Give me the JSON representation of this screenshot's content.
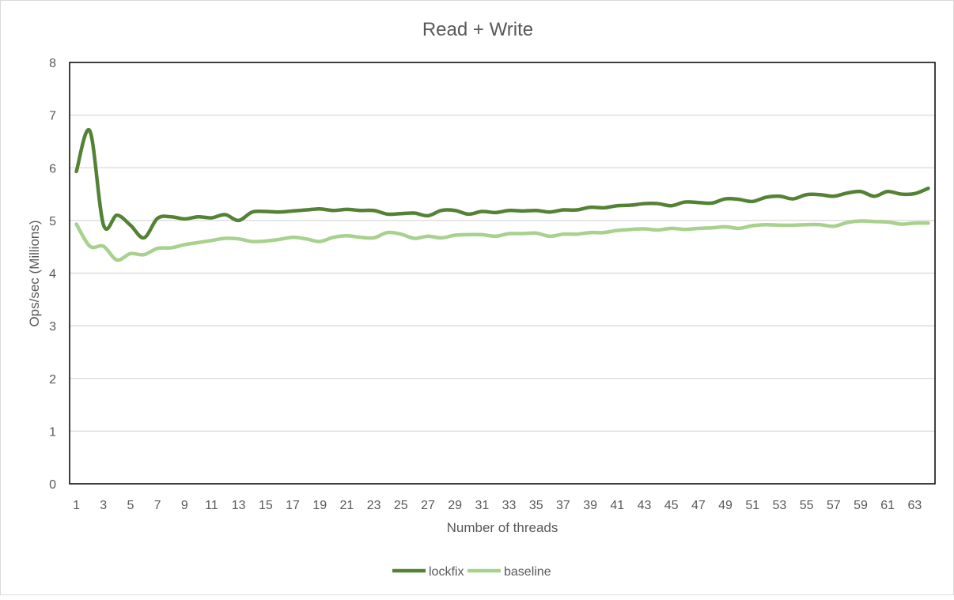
{
  "chart_data": {
    "type": "line",
    "title": "Read + Write",
    "xlabel": "Number of threads",
    "ylabel": "Ops/sec (Millions)",
    "ylim": [
      0,
      8
    ],
    "yticks": [
      "0",
      "1",
      "2",
      "3",
      "4",
      "5",
      "6",
      "7",
      "8"
    ],
    "x": [
      1,
      2,
      3,
      4,
      5,
      6,
      7,
      8,
      9,
      10,
      11,
      12,
      13,
      14,
      15,
      16,
      17,
      18,
      19,
      20,
      21,
      22,
      23,
      24,
      25,
      26,
      27,
      28,
      29,
      30,
      31,
      32,
      33,
      34,
      35,
      36,
      37,
      38,
      39,
      40,
      41,
      42,
      43,
      44,
      45,
      46,
      47,
      48,
      49,
      50,
      51,
      52,
      53,
      54,
      55,
      56,
      57,
      58,
      59,
      60,
      61,
      62,
      63,
      64
    ],
    "xtick_labels": [
      "1",
      "3",
      "5",
      "7",
      "9",
      "11",
      "13",
      "15",
      "17",
      "19",
      "21",
      "23",
      "25",
      "27",
      "29",
      "31",
      "33",
      "35",
      "37",
      "39",
      "41",
      "43",
      "45",
      "47",
      "49",
      "51",
      "53",
      "55",
      "57",
      "59",
      "61",
      "63"
    ],
    "grid": true,
    "legend_position": "bottom",
    "series": [
      {
        "name": "lockfix",
        "color": "#548235",
        "values": [
          5.93,
          6.7,
          4.92,
          5.1,
          4.91,
          4.67,
          5.04,
          5.07,
          5.03,
          5.07,
          5.05,
          5.11,
          5.0,
          5.16,
          5.17,
          5.16,
          5.18,
          5.2,
          5.22,
          5.19,
          5.21,
          5.19,
          5.19,
          5.12,
          5.13,
          5.14,
          5.09,
          5.19,
          5.19,
          5.12,
          5.17,
          5.15,
          5.19,
          5.18,
          5.19,
          5.16,
          5.2,
          5.2,
          5.25,
          5.24,
          5.28,
          5.29,
          5.32,
          5.32,
          5.28,
          5.35,
          5.34,
          5.33,
          5.41,
          5.4,
          5.36,
          5.44,
          5.46,
          5.41,
          5.49,
          5.49,
          5.46,
          5.52,
          5.55,
          5.46,
          5.55,
          5.5,
          5.51,
          5.61
        ]
      },
      {
        "name": "baseline",
        "color": "#a9d18e",
        "values": [
          4.93,
          4.51,
          4.51,
          4.25,
          4.37,
          4.35,
          4.47,
          4.48,
          4.54,
          4.58,
          4.62,
          4.66,
          4.65,
          4.6,
          4.61,
          4.64,
          4.68,
          4.65,
          4.6,
          4.68,
          4.71,
          4.68,
          4.67,
          4.77,
          4.74,
          4.66,
          4.7,
          4.67,
          4.72,
          4.73,
          4.73,
          4.7,
          4.75,
          4.75,
          4.76,
          4.7,
          4.74,
          4.74,
          4.77,
          4.77,
          4.81,
          4.83,
          4.84,
          4.82,
          4.85,
          4.83,
          4.85,
          4.86,
          4.88,
          4.85,
          4.9,
          4.92,
          4.91,
          4.91,
          4.92,
          4.92,
          4.89,
          4.96,
          4.99,
          4.98,
          4.97,
          4.93,
          4.95,
          4.95
        ]
      }
    ]
  }
}
